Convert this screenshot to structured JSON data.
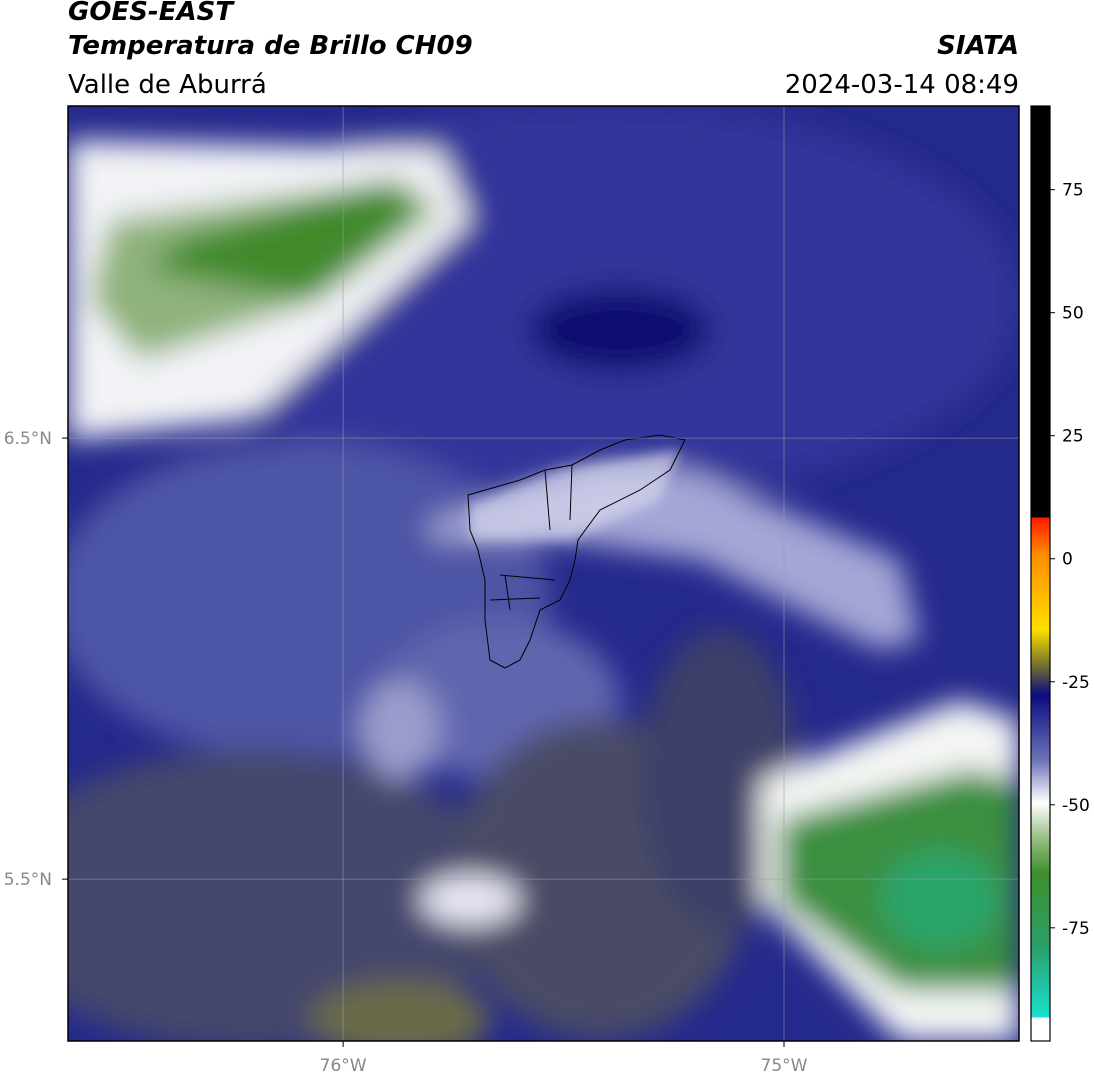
{
  "header": {
    "title": "GOES-EAST",
    "subtitle": "Temperatura de Brillo CH09",
    "region": "Valle de Aburrá",
    "source": "SIATA",
    "timestamp": "2024-03-14 08:49"
  },
  "map": {
    "xlim": [
      -76.624,
      -74.467
    ],
    "ylim": [
      5.133,
      7.253
    ],
    "xticks": [
      {
        "value": -76,
        "label": "76°W"
      },
      {
        "value": -75,
        "label": "75°W"
      }
    ],
    "yticks": [
      {
        "value": 6.5,
        "label": "6.5°N"
      },
      {
        "value": 5.5,
        "label": "5.5°N"
      }
    ],
    "grid": true
  },
  "colorbar": {
    "lim": [
      -98,
      92
    ],
    "ticks": [
      75,
      50,
      25,
      0,
      -25,
      -50,
      -75
    ]
  }
}
